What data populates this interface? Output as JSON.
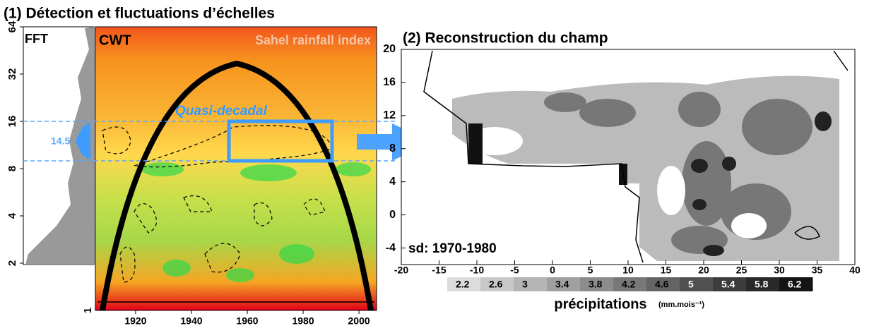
{
  "panel1": {
    "title": "(1) Détection et fluctuations d’échelles",
    "fft_label": "FFT",
    "cwt_label": "CWT",
    "series_label": "Sahel rainfall index",
    "band_label": "Quasi-decadal",
    "band_period": 14.5,
    "period_lim": [
      1,
      64
    ],
    "period_ticks": [
      1,
      2,
      4,
      8,
      16,
      32,
      64
    ],
    "log_scale": true,
    "year_lim": [
      1905.6,
      2006.3
    ],
    "year_ticks": [
      1920,
      1940,
      1960,
      1980,
      2000
    ]
  },
  "panel2": {
    "title": "(2) Reconstruction du champ",
    "period_label": "sd: 1970-1980",
    "xlim": [
      -20,
      40
    ],
    "xticks": [
      -20,
      -15,
      -10,
      -5,
      0,
      5,
      10,
      15,
      20,
      25,
      30,
      35,
      40
    ],
    "ylim": [
      -6,
      20
    ],
    "yticks": [
      -4,
      0,
      4,
      8,
      12,
      16,
      20
    ],
    "colorbar": {
      "ticks": [
        2.2,
        2.6,
        3,
        3.4,
        3.8,
        4.2,
        4.6,
        5,
        5.4,
        5.8,
        6.2
      ],
      "label": "précipitations",
      "unit": "(mm.mois⁻¹)"
    }
  }
}
